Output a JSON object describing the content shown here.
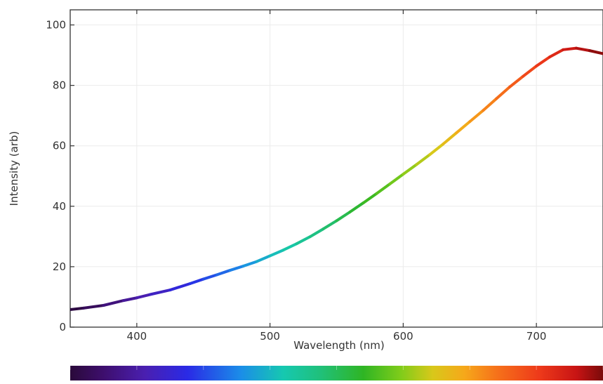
{
  "chart_data": {
    "type": "line",
    "title": "",
    "xlabel": "Wavelength (nm)",
    "ylabel": "Intensity (arb)",
    "xlim": [
      350,
      750
    ],
    "ylim": [
      0,
      105
    ],
    "x_ticks": [
      400,
      500,
      600,
      700
    ],
    "x_tick_labels": [
      "400",
      "500",
      "600",
      "700"
    ],
    "y_ticks": [
      0,
      20,
      40,
      60,
      80,
      100
    ],
    "y_tick_labels": [
      "0",
      "20",
      "40",
      "60",
      "80",
      "100"
    ],
    "grid": true,
    "legend": "none",
    "colorbar": {
      "orientation": "horizontal",
      "position": "bottom",
      "range": [
        350,
        750
      ],
      "colormap": "spectral wavelength"
    },
    "series": [
      {
        "x": [
          350,
          360,
          375,
          390,
          400,
          410,
          425,
          440,
          450,
          460,
          470,
          480,
          490,
          500,
          510,
          520,
          530,
          540,
          550,
          560,
          570,
          580,
          590,
          600,
          610,
          620,
          630,
          640,
          650,
          660,
          670,
          680,
          690,
          700,
          710,
          720,
          730,
          740,
          750
        ],
        "y": [
          5.8,
          6.3,
          7.2,
          8.8,
          9.7,
          10.8,
          12.3,
          14.4,
          15.9,
          17.3,
          18.8,
          20.2,
          21.7,
          23.6,
          25.5,
          27.6,
          29.9,
          32.5,
          35.2,
          38.1,
          41.1,
          44.2,
          47.4,
          50.6,
          53.8,
          57.1,
          60.6,
          64.3,
          68.0,
          71.7,
          75.6,
          79.5,
          83.0,
          86.4,
          89.4,
          91.8,
          92.3,
          91.5,
          90.5
        ]
      }
    ]
  }
}
